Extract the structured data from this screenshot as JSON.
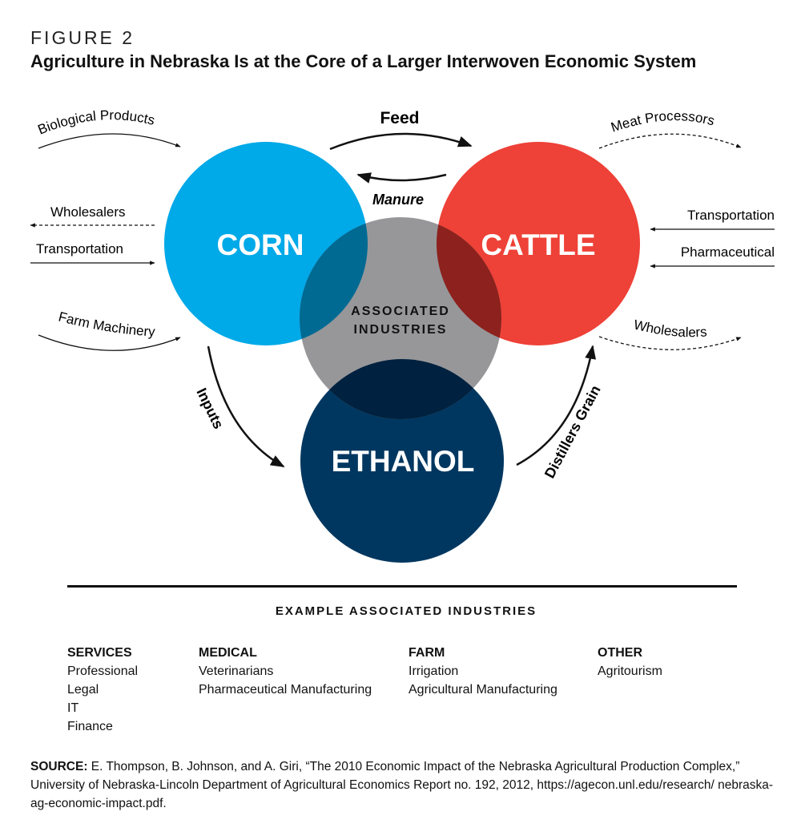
{
  "figure_label": "FIGURE 2",
  "title": "Agriculture in Nebraska Is at the Core of a Larger Interwoven Economic System",
  "diagram": {
    "circles": {
      "corn": {
        "label": "CORN",
        "color": "#00A9E8"
      },
      "cattle": {
        "label": "CATTLE",
        "color": "#EE4137"
      },
      "associated": {
        "label_line1": "ASSOCIATED",
        "label_line2": "INDUSTRIES",
        "color": "#97979A"
      },
      "ethanol": {
        "label": "ETHANOL",
        "color": "#003760"
      }
    },
    "flows": {
      "feed": "Feed",
      "manure": "Manure",
      "inputs": "Inputs",
      "distillers_grain": "Distillers Grain",
      "biological_products": "Biological Products",
      "wholesalers_left": "Wholesalers",
      "transportation_left": "Transportation",
      "farm_machinery": "Farm Machinery",
      "meat_processors": "Meat Processors",
      "transportation_right": "Transportation",
      "pharmaceutical": "Pharmaceutical",
      "wholesalers_right": "Wholesalers"
    }
  },
  "examples": {
    "heading": "EXAMPLE ASSOCIATED INDUSTRIES",
    "columns": [
      {
        "heading": "SERVICES",
        "items": [
          "Professional",
          "Legal",
          "IT",
          "Finance"
        ]
      },
      {
        "heading": "MEDICAL",
        "items": [
          "Veterinarians",
          "Pharmaceutical Manufacturing"
        ]
      },
      {
        "heading": "FARM",
        "items": [
          "Irrigation",
          "Agricultural Manufacturing"
        ]
      },
      {
        "heading": "OTHER",
        "items": [
          "Agritourism"
        ]
      }
    ]
  },
  "source": {
    "label": "SOURCE:",
    "text": "E. Thompson, B. Johnson, and A. Giri, “The 2010 Economic Impact of the Nebraska Agricultural Production Complex,” University of Nebraska-Lincoln Department of Agricultural Economics Report no. 192, 2012, https://agecon.unl.edu/research/ nebraska-ag-economic-impact.pdf."
  }
}
